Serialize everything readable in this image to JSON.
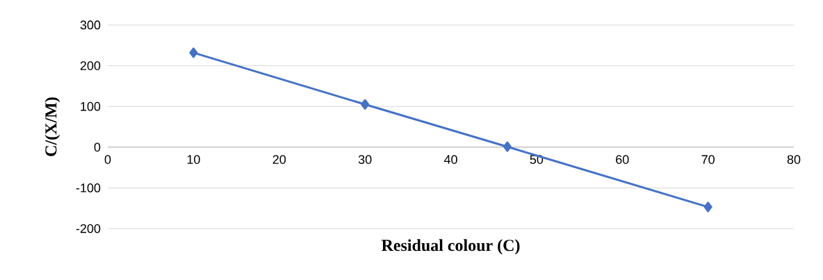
{
  "chart_data": {
    "type": "line",
    "xlabel": "Residual colour (C)",
    "ylabel": "C/(X/M)",
    "x": [
      10,
      30,
      46.6,
      70
    ],
    "series": [
      {
        "color": "#4472c4",
        "values": [
          232,
          105,
          1,
          -147
        ]
      }
    ],
    "xlim": [
      0,
      80
    ],
    "xticks": [
      0,
      10,
      20,
      30,
      40,
      50,
      60,
      70,
      80
    ],
    "ylim": [
      -200,
      300
    ],
    "yticks": [
      -200,
      -100,
      0,
      100,
      200,
      300
    ],
    "grid": "y",
    "marker": "diamond",
    "line_style": "solid"
  }
}
